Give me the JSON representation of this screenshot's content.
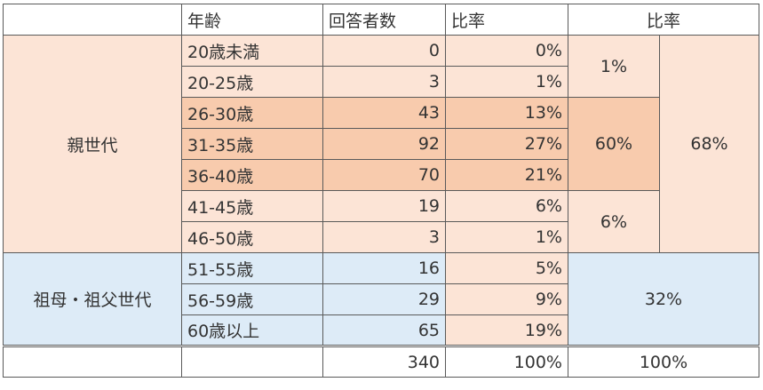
{
  "header": {
    "age": "年齢",
    "count": "回答者数",
    "ratio": "比率",
    "ratio_group": "比率"
  },
  "groups": [
    {
      "label": "親世代",
      "ratio": "68%"
    },
    {
      "label": "祖母・祖父世代",
      "ratio": "32%"
    }
  ],
  "subgroups": [
    "1%",
    "60%",
    "6%"
  ],
  "rows": [
    {
      "age": "20歳未満",
      "count": "0",
      "ratio": "0%"
    },
    {
      "age": "20-25歳",
      "count": "3",
      "ratio": "1%"
    },
    {
      "age": "26-30歳",
      "count": "43",
      "ratio": "13%"
    },
    {
      "age": "31-35歳",
      "count": "92",
      "ratio": "27%"
    },
    {
      "age": "36-40歳",
      "count": "70",
      "ratio": "21%"
    },
    {
      "age": "41-45歳",
      "count": "19",
      "ratio": "6%"
    },
    {
      "age": "46-50歳",
      "count": "3",
      "ratio": "1%"
    },
    {
      "age": "51-55歳",
      "count": "16",
      "ratio": "5%"
    },
    {
      "age": "56-59歳",
      "count": "29",
      "ratio": "9%"
    },
    {
      "age": "60歳以上",
      "count": "65",
      "ratio": "19%"
    }
  ],
  "total": {
    "count": "340",
    "ratio": "100%",
    "ratio_group": "100%"
  },
  "colors": {
    "parent": "#fce4d6",
    "parent_peak": "#f8cbad",
    "grandparent": "#ddebf7"
  }
}
